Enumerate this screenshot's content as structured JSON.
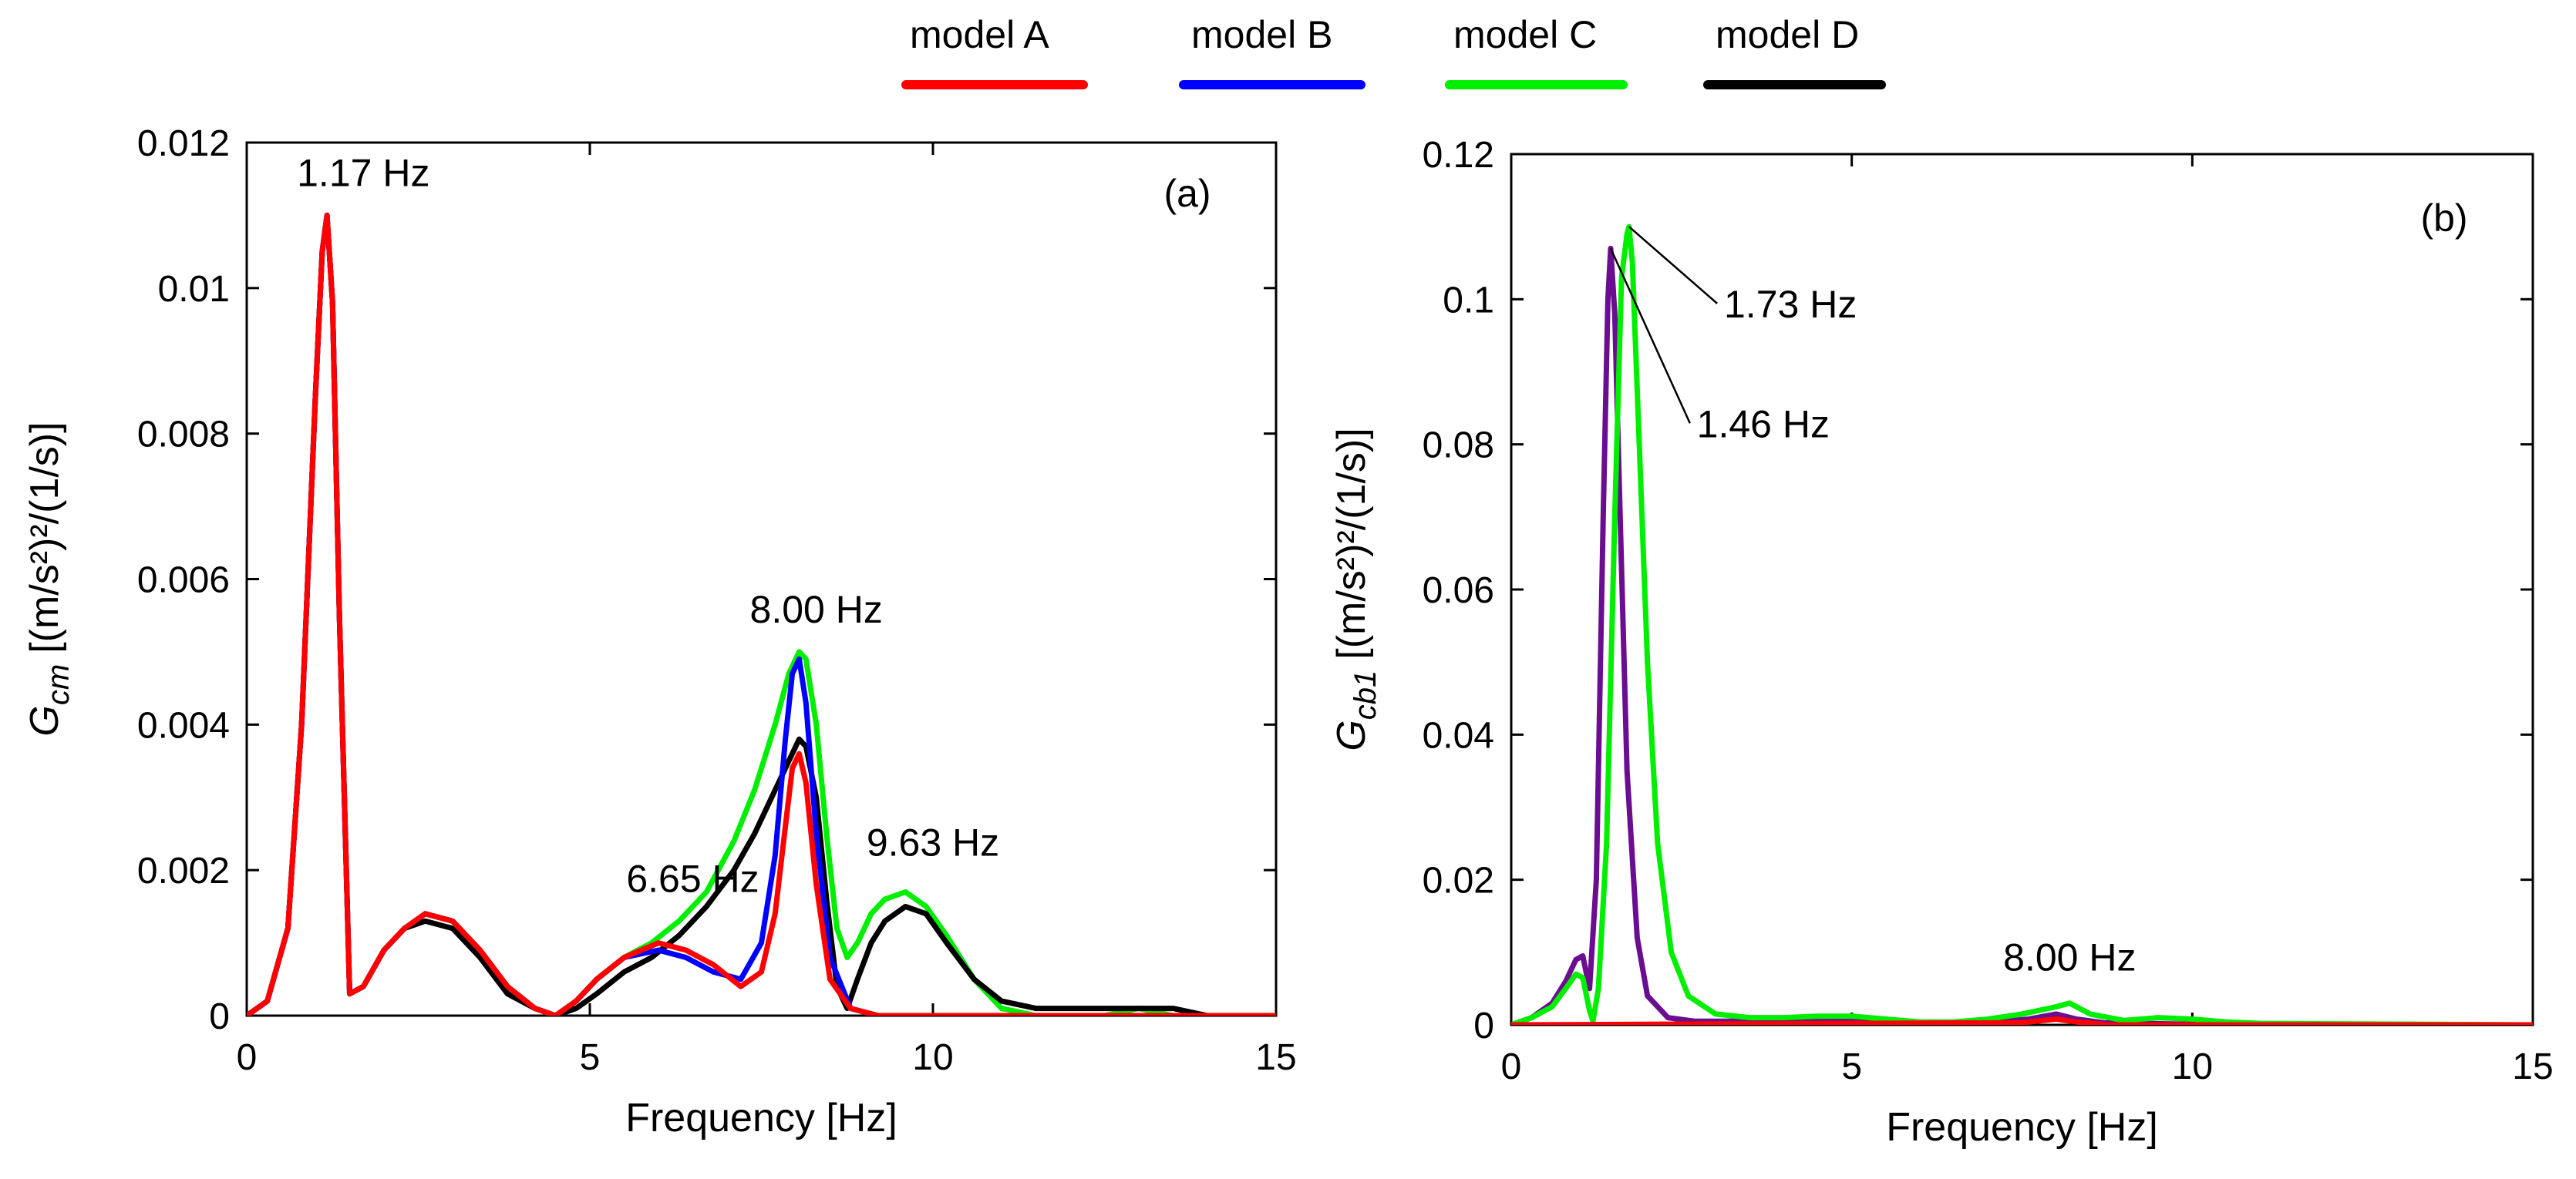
{
  "legend": {
    "placement": "top-center",
    "entries": [
      {
        "label": "model A",
        "color": "#ff0000"
      },
      {
        "label": "model B",
        "color": "#0000ff"
      },
      {
        "label": "model C",
        "color": "#00ee00"
      },
      {
        "label": "model D",
        "color": "#000000"
      }
    ]
  },
  "chart_data": [
    {
      "type": "line",
      "panel_label": "(a)",
      "xlabel": "Frequency [Hz]",
      "ylabel": {
        "symbol": "G",
        "subscript": "cm",
        "units": "[(m/s²)²/(1/s)]"
      },
      "xlim": [
        0,
        15
      ],
      "ylim": [
        0,
        0.012
      ],
      "xticks": [
        0,
        5,
        10,
        15
      ],
      "xtick_labels": [
        "0",
        "5",
        "10",
        "15"
      ],
      "yticks": [
        0,
        0.002,
        0.004,
        0.006,
        0.008,
        0.01,
        0.012
      ],
      "ytick_labels": [
        "0",
        "0.002",
        "0.004",
        "0.006",
        "0.008",
        "0.01",
        "0.012"
      ],
      "grid": false,
      "annotations": [
        {
          "text": "1.17 Hz",
          "x": 1.7,
          "y": 0.0114
        },
        {
          "text": "8.00 Hz",
          "x": 8.3,
          "y": 0.0054
        },
        {
          "text": "6.65 Hz",
          "x": 6.5,
          "y": 0.0017
        },
        {
          "text": "9.63 Hz",
          "x": 10.0,
          "y": 0.0022
        }
      ],
      "series": [
        {
          "color": "#00ee00",
          "x": [
            0,
            0.3,
            0.6,
            0.8,
            1.0,
            1.1,
            1.17,
            1.25,
            1.35,
            1.5,
            1.7,
            2.0,
            2.3,
            2.6,
            3.0,
            3.4,
            3.8,
            4.2,
            4.5,
            4.8,
            5.1,
            5.5,
            5.9,
            6.3,
            6.7,
            7.1,
            7.4,
            7.7,
            7.9,
            8.05,
            8.15,
            8.3,
            8.45,
            8.6,
            8.75,
            8.9,
            9.1,
            9.3,
            9.6,
            9.9,
            10.2,
            10.6,
            11.0,
            11.5,
            12.0,
            12.5,
            13.0,
            13.5,
            14.0,
            15.0
          ],
          "values": [
            0,
            0.0002,
            0.0012,
            0.004,
            0.0085,
            0.0105,
            0.011,
            0.0098,
            0.0055,
            0.0003,
            0.0004,
            0.0009,
            0.0012,
            0.0014,
            0.0013,
            0.0009,
            0.0004,
            0.0001,
            0,
            0.0002,
            0.0005,
            0.0008,
            0.001,
            0.0013,
            0.0017,
            0.0024,
            0.0031,
            0.004,
            0.0047,
            0.005,
            0.0049,
            0.004,
            0.0025,
            0.0012,
            0.0008,
            0.001,
            0.0014,
            0.0016,
            0.0017,
            0.0015,
            0.0011,
            0.0005,
            0.0001,
            0,
            0,
            0,
            0.0001,
            0,
            0,
            0
          ]
        },
        {
          "color": "#000000",
          "x": [
            0,
            0.3,
            0.6,
            0.8,
            1.0,
            1.1,
            1.17,
            1.25,
            1.35,
            1.5,
            1.7,
            2.0,
            2.3,
            2.6,
            3.0,
            3.4,
            3.8,
            4.2,
            4.5,
            4.8,
            5.1,
            5.5,
            5.9,
            6.3,
            6.7,
            7.1,
            7.4,
            7.7,
            7.9,
            8.05,
            8.15,
            8.3,
            8.45,
            8.6,
            8.75,
            8.9,
            9.1,
            9.3,
            9.6,
            9.9,
            10.2,
            10.6,
            11.0,
            11.5,
            12.0,
            12.5,
            13.0,
            13.5,
            14.0,
            15.0
          ],
          "values": [
            0,
            0.0002,
            0.0012,
            0.004,
            0.0085,
            0.0105,
            0.011,
            0.0098,
            0.0055,
            0.0003,
            0.0004,
            0.0009,
            0.0012,
            0.0013,
            0.0012,
            0.0008,
            0.0003,
            0.0001,
            0,
            0.0001,
            0.0003,
            0.0006,
            0.0008,
            0.0011,
            0.0015,
            0.002,
            0.0025,
            0.0031,
            0.0035,
            0.0038,
            0.0037,
            0.003,
            0.0016,
            0.0004,
            0.0001,
            0.0005,
            0.001,
            0.0013,
            0.0015,
            0.0014,
            0.001,
            0.0005,
            0.0002,
            0.0001,
            0.0001,
            0.0001,
            0.0001,
            0.0001,
            0,
            0
          ]
        },
        {
          "color": "#0000ff",
          "x": [
            0,
            0.3,
            0.6,
            0.8,
            1.0,
            1.1,
            1.17,
            1.25,
            1.35,
            1.5,
            1.7,
            2.0,
            2.3,
            2.6,
            3.0,
            3.4,
            3.8,
            4.2,
            4.5,
            4.8,
            5.1,
            5.5,
            6.0,
            6.4,
            6.8,
            7.2,
            7.5,
            7.7,
            7.85,
            7.95,
            8.05,
            8.15,
            8.3,
            8.5,
            8.8,
            9.2,
            10.0,
            15.0
          ],
          "values": [
            0,
            0.0002,
            0.0012,
            0.004,
            0.0085,
            0.0105,
            0.011,
            0.0098,
            0.0055,
            0.0003,
            0.0004,
            0.0009,
            0.0012,
            0.0014,
            0.0013,
            0.0009,
            0.0004,
            0.0001,
            0,
            0.0002,
            0.0005,
            0.0008,
            0.0009,
            0.0008,
            0.0006,
            0.0005,
            0.001,
            0.0022,
            0.0038,
            0.0047,
            0.0049,
            0.0043,
            0.0025,
            0.0008,
            0.0001,
            0,
            0,
            0
          ]
        },
        {
          "color": "#ff0000",
          "x": [
            0,
            0.3,
            0.6,
            0.8,
            1.0,
            1.1,
            1.17,
            1.25,
            1.35,
            1.5,
            1.7,
            2.0,
            2.3,
            2.6,
            3.0,
            3.4,
            3.8,
            4.2,
            4.5,
            4.8,
            5.1,
            5.5,
            6.0,
            6.4,
            6.8,
            7.2,
            7.5,
            7.7,
            7.85,
            7.95,
            8.05,
            8.15,
            8.3,
            8.5,
            8.8,
            9.2,
            10.0,
            15.0
          ],
          "values": [
            0,
            0.0002,
            0.0012,
            0.004,
            0.0085,
            0.0105,
            0.011,
            0.0098,
            0.0055,
            0.0003,
            0.0004,
            0.0009,
            0.0012,
            0.0014,
            0.0013,
            0.0009,
            0.0004,
            0.0001,
            0,
            0.0002,
            0.0005,
            0.0008,
            0.001,
            0.0009,
            0.0007,
            0.0004,
            0.0006,
            0.0014,
            0.0026,
            0.0034,
            0.0036,
            0.0032,
            0.0018,
            0.0005,
            0.0001,
            0,
            0,
            0
          ]
        }
      ]
    },
    {
      "type": "line",
      "panel_label": "(b)",
      "xlabel": "Frequency [Hz]",
      "ylabel": {
        "symbol": "G",
        "subscript": "cb1",
        "units": "[(m/s²)²/(1/s)]"
      },
      "xlim": [
        0,
        15
      ],
      "ylim": [
        0,
        0.12
      ],
      "xticks": [
        0,
        5,
        10,
        15
      ],
      "xtick_labels": [
        "0",
        "5",
        "10",
        "15"
      ],
      "yticks": [
        0,
        0.02,
        0.04,
        0.06,
        0.08,
        0.1,
        0.12
      ],
      "ytick_labels": [
        "0",
        "0.02",
        "0.04",
        "0.06",
        "0.08",
        "0.1",
        "0.12"
      ],
      "grid": false,
      "annotations": [
        {
          "text": "1.73 Hz",
          "x": 4.1,
          "y": 0.0975,
          "points_to": [
            1.73,
            0.11
          ]
        },
        {
          "text": "1.46 Hz",
          "x": 3.7,
          "y": 0.081,
          "points_to": [
            1.46,
            0.107
          ]
        },
        {
          "text": "8.00 Hz",
          "x": 8.2,
          "y": 0.0075
        }
      ],
      "series": [
        {
          "color": "#6a0d91",
          "x": [
            0,
            0.3,
            0.6,
            0.8,
            0.95,
            1.05,
            1.15,
            1.25,
            1.35,
            1.42,
            1.46,
            1.52,
            1.6,
            1.7,
            1.85,
            2.0,
            2.3,
            2.7,
            3.2,
            4.0,
            5.0,
            6.0,
            7.0,
            7.6,
            8.0,
            8.3,
            8.7,
            9.2,
            10.0,
            11.0,
            15.0
          ],
          "values": [
            0,
            0.001,
            0.003,
            0.006,
            0.009,
            0.0095,
            0.005,
            0.02,
            0.07,
            0.1,
            0.107,
            0.098,
            0.07,
            0.035,
            0.012,
            0.004,
            0.001,
            0.0005,
            0.0005,
            0.0008,
            0.0007,
            0.0003,
            0.0003,
            0.0008,
            0.0015,
            0.0008,
            0.0003,
            0.0002,
            0.0001,
            0,
            0
          ]
        },
        {
          "color": "#00ee00",
          "x": [
            0,
            0.3,
            0.6,
            0.8,
            0.95,
            1.05,
            1.15,
            1.2,
            1.28,
            1.4,
            1.52,
            1.62,
            1.7,
            1.73,
            1.78,
            1.88,
            2.0,
            2.15,
            2.35,
            2.6,
            3.0,
            3.5,
            4.0,
            4.5,
            5.0,
            5.5,
            6.0,
            6.5,
            7.0,
            7.5,
            8.0,
            8.2,
            8.5,
            9.0,
            9.5,
            10.0,
            10.5,
            11.0,
            15.0
          ],
          "values": [
            0,
            0.001,
            0.0025,
            0.005,
            0.007,
            0.0065,
            0.002,
            0.0005,
            0.005,
            0.025,
            0.07,
            0.103,
            0.109,
            0.11,
            0.105,
            0.08,
            0.05,
            0.025,
            0.01,
            0.004,
            0.0015,
            0.001,
            0.001,
            0.0012,
            0.0012,
            0.0008,
            0.0004,
            0.0004,
            0.0008,
            0.0015,
            0.0025,
            0.003,
            0.0015,
            0.0006,
            0.001,
            0.0008,
            0.0004,
            0.0002,
            0
          ]
        },
        {
          "color": "#ff0000",
          "x": [
            0,
            7.5,
            8.0,
            8.3,
            8.8,
            15.0
          ],
          "values": [
            0,
            0.0003,
            0.0008,
            0.0004,
            0,
            0
          ]
        }
      ]
    }
  ]
}
